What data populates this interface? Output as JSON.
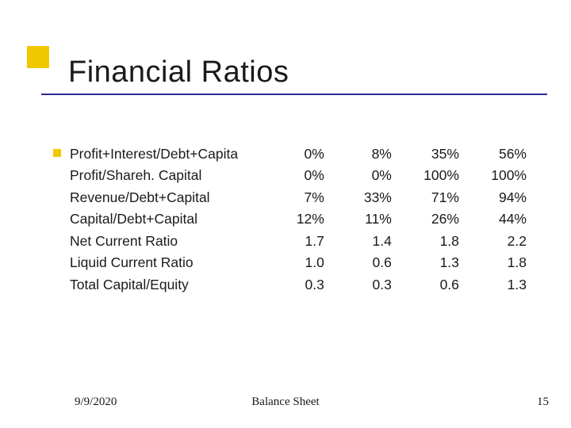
{
  "slide": {
    "title": "Financial Ratios",
    "title_fontsize": 38,
    "title_color": "#1a1a1a",
    "accent_square_color": "#f0c800",
    "rule_color": "#2a2a9a",
    "background_color": "#ffffff"
  },
  "table": {
    "type": "table",
    "font_family": "Arial",
    "font_size": 17.5,
    "text_color": "#1a1a1a",
    "label_col_width": 235,
    "value_col_width": 80,
    "value_align": "right",
    "rows": [
      {
        "label": "Profit+Interest/Debt+Capita",
        "values": [
          "0%",
          "8%",
          "35%",
          "56%"
        ]
      },
      {
        "label": "Profit/Shareh. Capital",
        "values": [
          "0%",
          "0%",
          "100%",
          "100%"
        ]
      },
      {
        "label": "Revenue/Debt+Capital",
        "values": [
          "7%",
          "33%",
          "71%",
          "94%"
        ]
      },
      {
        "label": "Capital/Debt+Capital",
        "values": [
          "12%",
          "11%",
          "26%",
          "44%"
        ]
      },
      {
        "label": "Net Current Ratio",
        "values": [
          "1.7",
          "1.4",
          "1.8",
          "2.2"
        ]
      },
      {
        "label": "Liquid Current Ratio",
        "values": [
          "1.0",
          "0.6",
          "1.3",
          "1.8"
        ]
      },
      {
        "label": "Total Capital/Equity",
        "values": [
          "0.3",
          "0.3",
          "0.6",
          "1.3"
        ]
      }
    ]
  },
  "footer": {
    "date": "9/9/2020",
    "center": "Balance Sheet",
    "page": "15",
    "font_family": "Times New Roman",
    "font_size": 15,
    "text_color": "#1a1a1a"
  }
}
